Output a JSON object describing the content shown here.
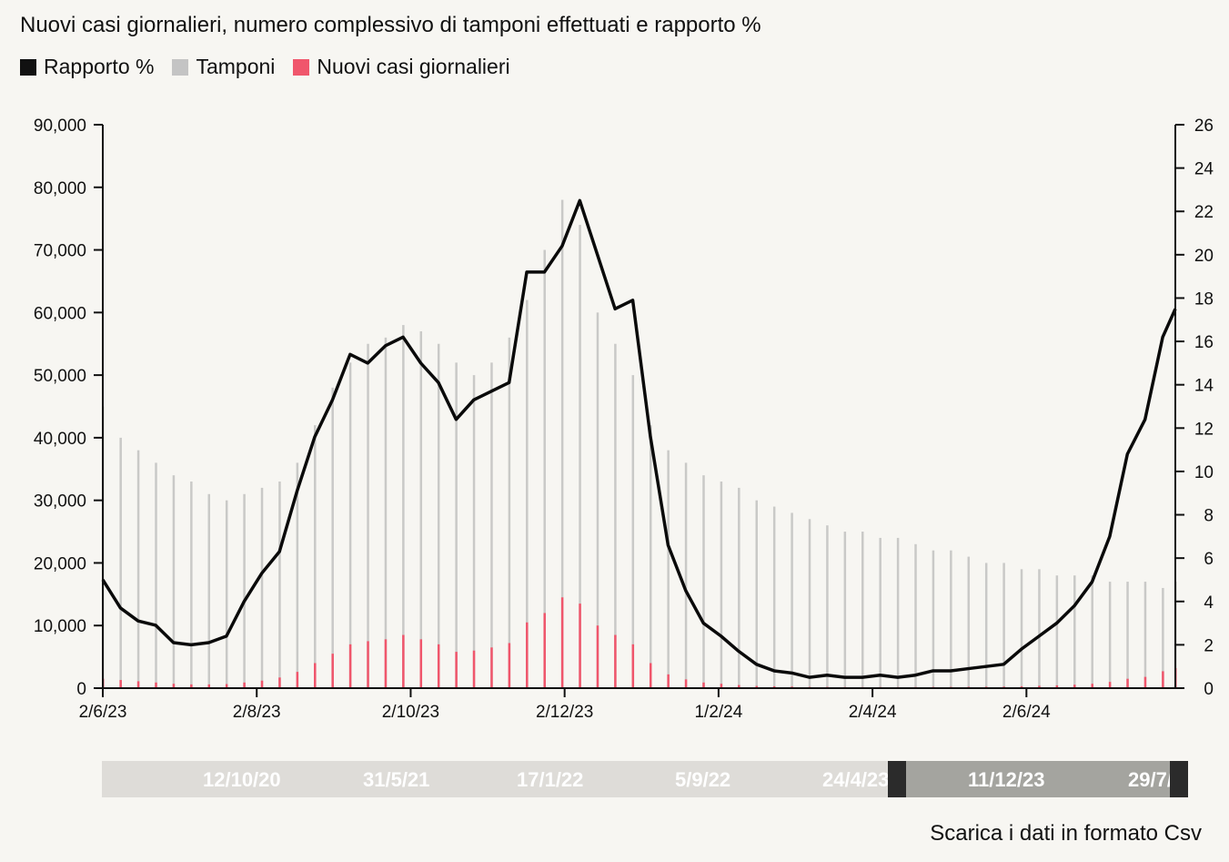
{
  "title": "Nuovi casi giornalieri, numero complessivo di tamponi effettuati e rapporto %",
  "legend": [
    {
      "label": "Rapporto %",
      "color": "#111111"
    },
    {
      "label": "Tamponi",
      "color": "#c4c4c4"
    },
    {
      "label": "Nuovi casi giornalieri",
      "color": "#f0566c"
    }
  ],
  "navigator": {
    "labels": [
      "12/10/20",
      "31/5/21",
      "17/1/22",
      "5/9/22",
      "24/4/23",
      "11/12/23",
      "29/7/24"
    ]
  },
  "download_label": "Scarica i dati in formato Csv",
  "chart_data": {
    "type": "bar+line",
    "title": "Nuovi casi giornalieri, numero complessivo di tamponi effettuati e rapporto %",
    "x_ticks": [
      "2/6/23",
      "2/8/23",
      "2/10/23",
      "2/12/23",
      "1/2/24",
      "2/4/24",
      "2/6/24"
    ],
    "x_tick_days": [
      0,
      61,
      122,
      183,
      244,
      305,
      366
    ],
    "x_range_days": [
      0,
      425
    ],
    "x_step_days": 7,
    "y_left": {
      "ticks": [
        "0",
        "10,000",
        "20,000",
        "30,000",
        "40,000",
        "50,000",
        "60,000",
        "70,000",
        "80,000",
        "90,000"
      ],
      "range": [
        0,
        90000
      ]
    },
    "y_right": {
      "ticks": [
        "0",
        "2",
        "4",
        "6",
        "8",
        "10",
        "12",
        "14",
        "16",
        "18",
        "20",
        "22",
        "24",
        "26"
      ],
      "range": [
        0,
        26
      ]
    },
    "series": [
      {
        "name": "Rapporto %",
        "type": "line",
        "axis": "right",
        "values": [
          5.0,
          3.7,
          3.1,
          2.9,
          2.1,
          2.0,
          2.1,
          2.4,
          4.0,
          5.3,
          6.3,
          9.1,
          11.6,
          13.3,
          15.4,
          15.0,
          15.8,
          16.2,
          15.0,
          14.1,
          12.4,
          13.3,
          13.7,
          14.1,
          19.2,
          19.2,
          20.4,
          22.5,
          20.0,
          17.5,
          17.9,
          11.6,
          6.6,
          4.5,
          3.0,
          2.4,
          1.7,
          1.1,
          0.8,
          0.7,
          0.5,
          0.6,
          0.5,
          0.5,
          0.6,
          0.5,
          0.6,
          0.8,
          0.8,
          0.9,
          1.0,
          1.1,
          1.8,
          2.4,
          3.0,
          3.8,
          4.9,
          7.0,
          10.8,
          12.4,
          16.2,
          17.5
        ]
      },
      {
        "name": "Tamponi",
        "type": "bar",
        "axis": "left",
        "values": [
          45000,
          40000,
          38000,
          36000,
          34000,
          33000,
          31000,
          30000,
          31000,
          32000,
          33000,
          36000,
          42000,
          48000,
          52000,
          55000,
          56000,
          58000,
          57000,
          55000,
          52000,
          50000,
          52000,
          56000,
          62000,
          70000,
          78000,
          74000,
          60000,
          55000,
          50000,
          42000,
          38000,
          36000,
          34000,
          33000,
          32000,
          30000,
          29000,
          28000,
          27000,
          26000,
          25000,
          25000,
          24000,
          24000,
          23000,
          22000,
          22000,
          21000,
          20000,
          20000,
          19000,
          19000,
          18000,
          18000,
          18000,
          17000,
          17000,
          17000,
          16000,
          17000
        ]
      },
      {
        "name": "Nuovi casi giornalieri",
        "type": "bar",
        "axis": "left",
        "values": [
          1500,
          1300,
          1100,
          900,
          700,
          600,
          600,
          650,
          900,
          1200,
          1700,
          2600,
          4000,
          5500,
          7000,
          7500,
          7800,
          8500,
          7800,
          7000,
          5800,
          6000,
          6500,
          7200,
          10500,
          12000,
          14500,
          13500,
          10000,
          8500,
          7000,
          4000,
          2200,
          1400,
          900,
          700,
          500,
          350,
          300,
          250,
          200,
          200,
          180,
          170,
          180,
          170,
          180,
          200,
          200,
          220,
          230,
          250,
          300,
          380,
          450,
          550,
          700,
          1000,
          1500,
          1800,
          2700,
          3200
        ]
      }
    ]
  }
}
